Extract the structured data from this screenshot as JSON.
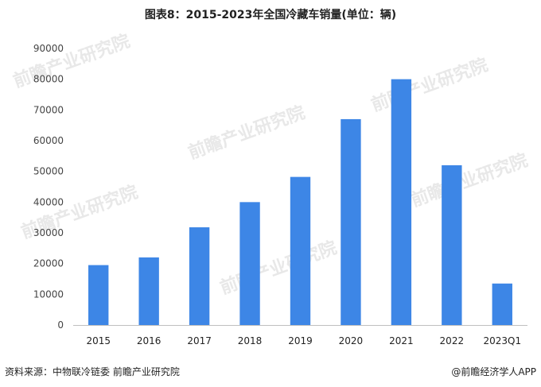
{
  "chart_data": {
    "type": "bar",
    "title": "图表8：2015-2023年全国冷藏车销量(单位：辆)",
    "categories": [
      "2015",
      "2016",
      "2017",
      "2018",
      "2019",
      "2020",
      "2021",
      "2022",
      "2023Q1"
    ],
    "values": [
      19500,
      22000,
      31800,
      40000,
      48200,
      67000,
      80000,
      52000,
      13500
    ],
    "ylim": [
      0,
      90000
    ],
    "yticks": [
      0,
      10000,
      20000,
      30000,
      40000,
      50000,
      60000,
      70000,
      80000,
      90000
    ],
    "xlabel": "",
    "ylabel": "",
    "grid": false,
    "bar_color": "#3d86e6"
  },
  "footer": {
    "source": "资料来源：中物联冷链委 前瞻产业研究院",
    "brand": "@前瞻经济学人APP"
  },
  "watermark": {
    "text": "前瞻产业研究院"
  },
  "colors": {
    "axis": "#bfbfbf",
    "text": "#222222"
  }
}
